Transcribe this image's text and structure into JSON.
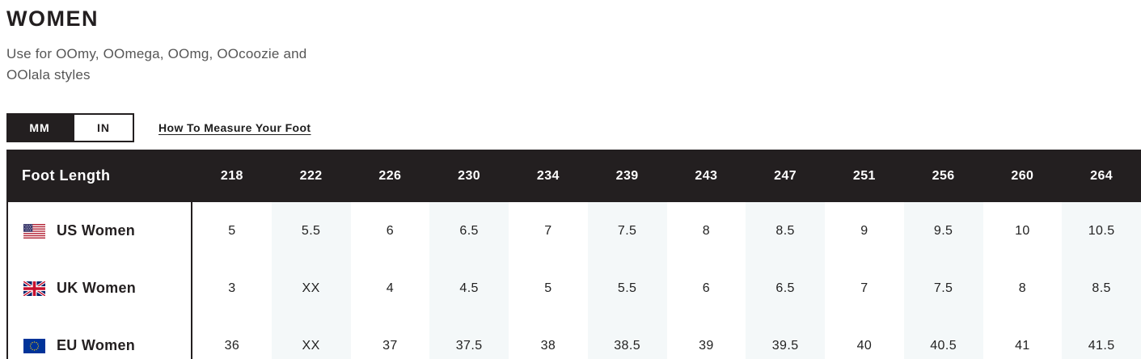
{
  "header": {
    "title": "WOMEN",
    "subtitle": "Use for OOmy, OOmega, OOmg, OOcoozie and OOlala styles"
  },
  "toggle": {
    "mm_label": "MM",
    "in_label": "IN",
    "selected": "MM"
  },
  "measure_link": {
    "label": "How To Measure Your Foot"
  },
  "colors": {
    "header_bg": "#231f20",
    "stripe": "#f4f8f9",
    "text": "#1d1d1d",
    "subtitle_gray": "#565656"
  },
  "table": {
    "header_label": "Foot Length",
    "unit": "MM",
    "columns": [
      "218",
      "222",
      "226",
      "230",
      "234",
      "239",
      "243",
      "247",
      "251",
      "256",
      "260",
      "264"
    ],
    "rows": [
      {
        "flag": "us-flag",
        "label": "US Women",
        "values": [
          "5",
          "5.5",
          "6",
          "6.5",
          "7",
          "7.5",
          "8",
          "8.5",
          "9",
          "9.5",
          "10",
          "10.5"
        ]
      },
      {
        "flag": "uk-flag",
        "label": "UK Women",
        "values": [
          "3",
          "XX",
          "4",
          "4.5",
          "5",
          "5.5",
          "6",
          "6.5",
          "7",
          "7.5",
          "8",
          "8.5"
        ]
      },
      {
        "flag": "eu-flag",
        "label": "EU Women",
        "values": [
          "36",
          "XX",
          "37",
          "37.5",
          "38",
          "38.5",
          "39",
          "39.5",
          "40",
          "40.5",
          "41",
          "41.5"
        ]
      }
    ]
  }
}
